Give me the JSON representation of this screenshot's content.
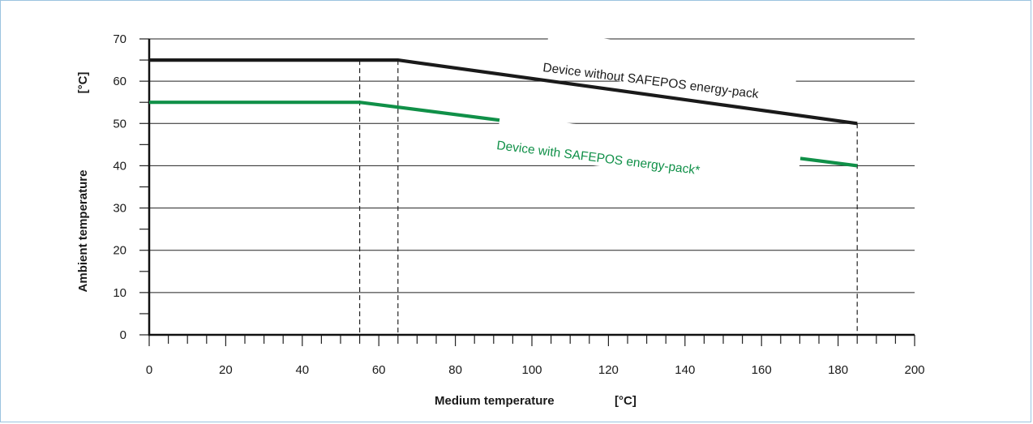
{
  "chart_data": {
    "type": "line",
    "xlabel": "Medium temperature",
    "xunit": "[°C]",
    "ylabel": "Ambient temperature",
    "yunit": "[°C]",
    "xlim": [
      0,
      200
    ],
    "ylim": [
      0,
      70
    ],
    "x_ticks": [
      0,
      20,
      40,
      60,
      80,
      100,
      120,
      140,
      160,
      180,
      200
    ],
    "y_ticks": [
      0,
      10,
      20,
      30,
      40,
      50,
      60,
      70
    ],
    "x_minor_step": 5,
    "y_minor_step": 5,
    "grid": "horizontal",
    "series": [
      {
        "name": "Device without SAFEPOS energy-pack",
        "color": "#1a1a1a",
        "points": [
          [
            0,
            65
          ],
          [
            65,
            65
          ],
          [
            185,
            50
          ]
        ]
      },
      {
        "name": "Device with SAFEPOS energy-pack*",
        "color": "#109048",
        "points": [
          [
            0,
            55
          ],
          [
            55,
            55
          ],
          [
            185,
            40
          ]
        ]
      }
    ],
    "dashed_x": [
      55,
      65,
      185
    ]
  }
}
